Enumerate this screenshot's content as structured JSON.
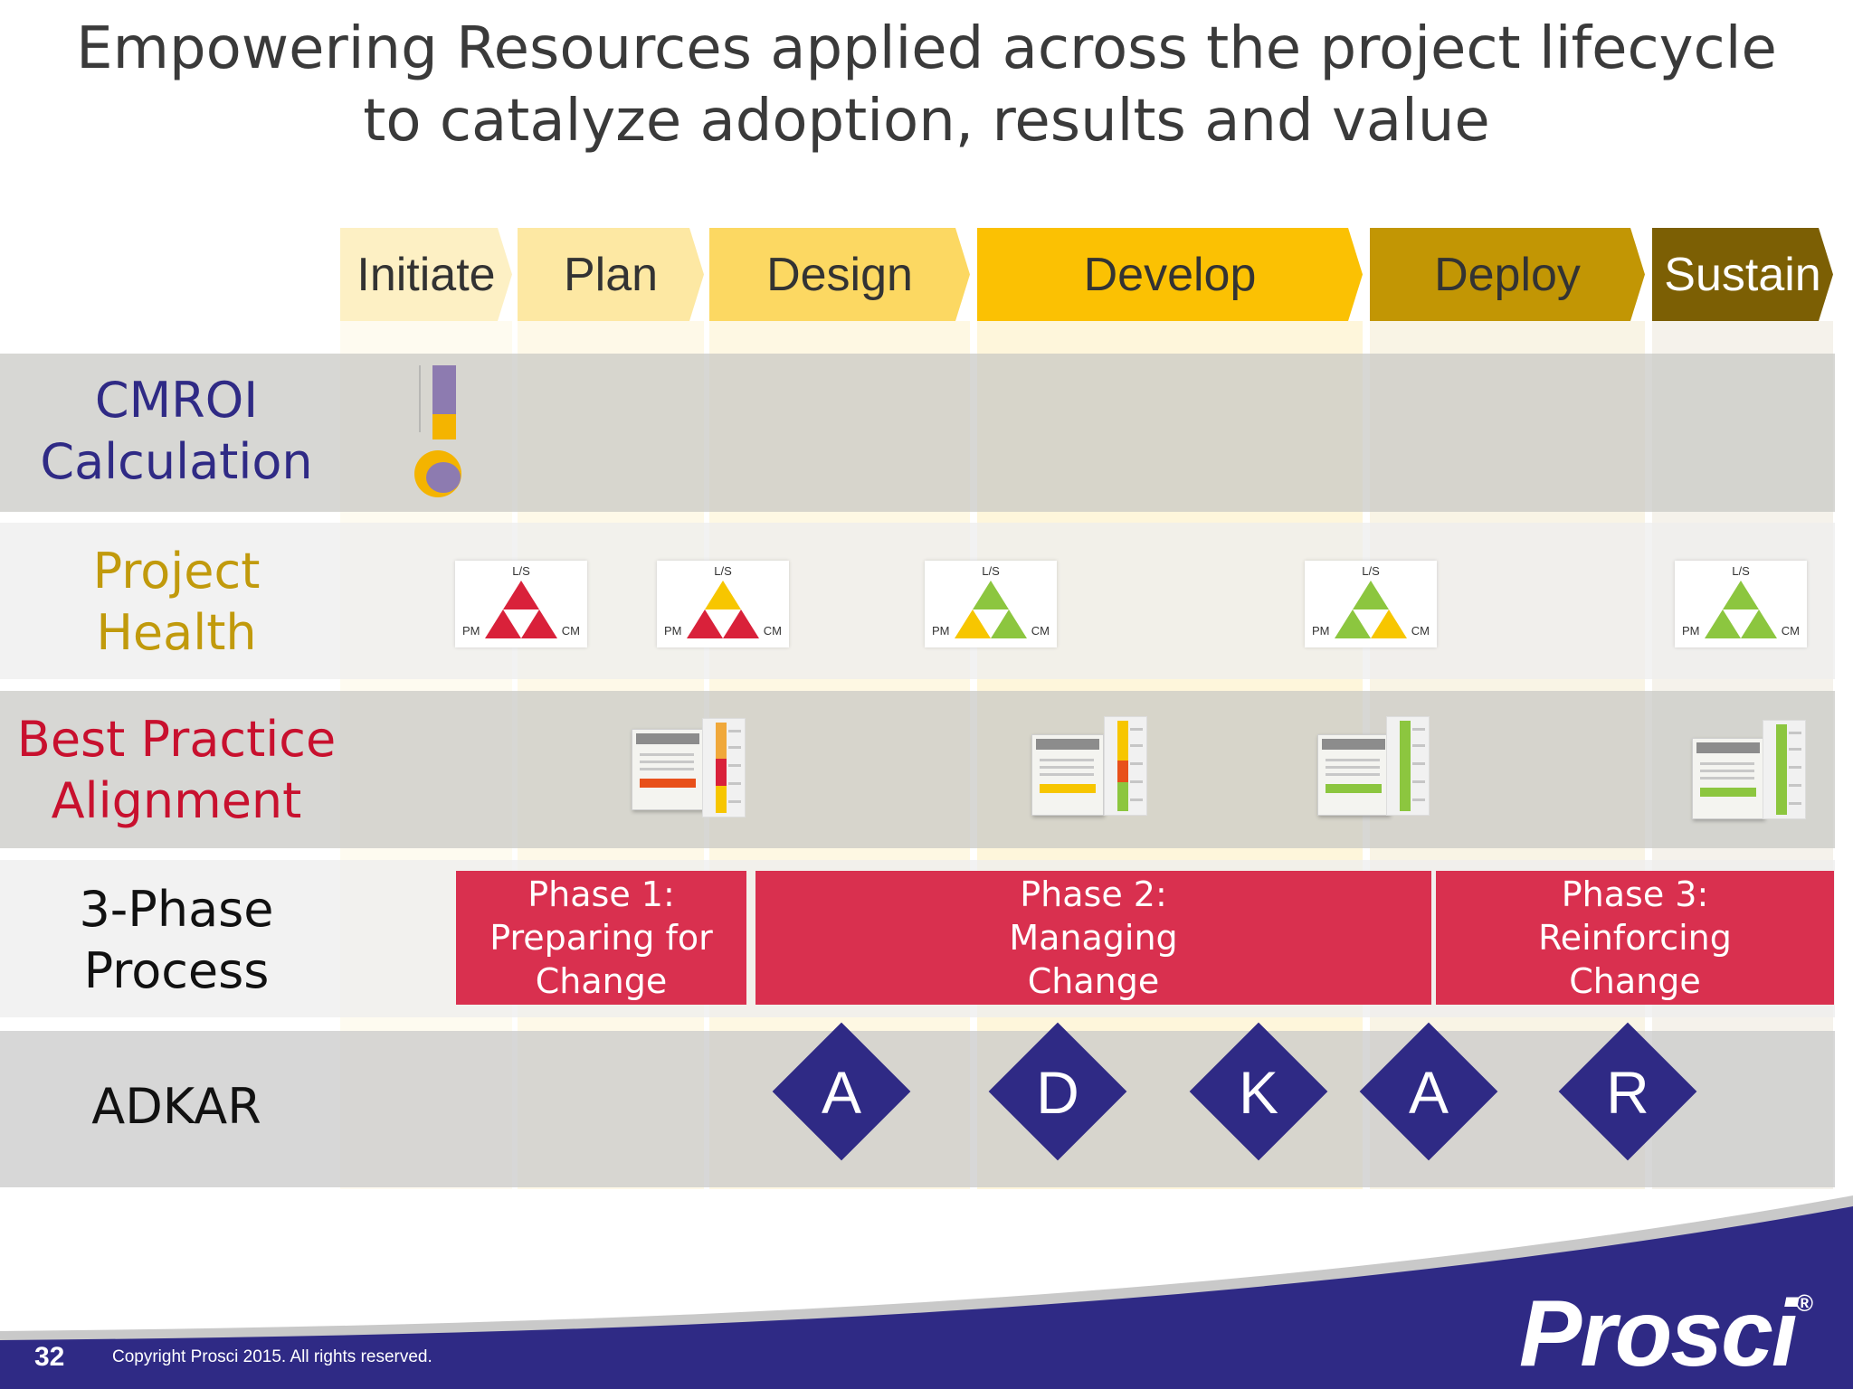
{
  "title": {
    "line1": "Empowering Resources applied across the project lifecycle",
    "line2": "to catalyze adoption, results and value"
  },
  "phases": [
    {
      "label": "Initiate",
      "color": "#fdf0c4",
      "text_color": "#333333"
    },
    {
      "label": "Plan",
      "color": "#fde8a3",
      "text_color": "#333333"
    },
    {
      "label": "Design",
      "color": "#fcd862",
      "text_color": "#333333"
    },
    {
      "label": "Develop",
      "color": "#fbc103",
      "text_color": "#333333"
    },
    {
      "label": "Deploy",
      "color": "#c29604",
      "text_color": "#333333"
    },
    {
      "label": "Sustain",
      "color": "#7c5f04",
      "text_color": "#ffffff"
    }
  ],
  "rows": {
    "cmroi": {
      "line1": "CMROI",
      "line2": "Calculation",
      "color": "#2f2a85"
    },
    "health": {
      "line1": "Project",
      "line2": "Health",
      "color": "#c19a0c"
    },
    "best_practice": {
      "line1": "Best Practice",
      "line2": "Alignment",
      "color": "#c8102e"
    },
    "three_phase": {
      "line1": "3-Phase",
      "line2": "Process",
      "color": "#111111"
    },
    "adkar": {
      "line1": "ADKAR",
      "color": "#111111"
    }
  },
  "triangles": {
    "ls": "L/S",
    "pm": "PM",
    "cm": "CM",
    "items": [
      {
        "top": "#d9213a",
        "left": "#d9213a",
        "right": "#d9213a"
      },
      {
        "top": "#f7c600",
        "left": "#d9213a",
        "right": "#d9213a"
      },
      {
        "top": "#8cc63f",
        "left": "#f7c600",
        "right": "#8cc63f"
      },
      {
        "top": "#8cc63f",
        "left": "#8cc63f",
        "right": "#f7c600"
      },
      {
        "top": "#8cc63f",
        "left": "#8cc63f",
        "right": "#8cc63f"
      }
    ]
  },
  "phase_process": [
    {
      "line1": "Phase 1:",
      "line2": "Preparing for",
      "line3": "Change"
    },
    {
      "line1": "Phase 2:",
      "line2": "Managing",
      "line3": "Change"
    },
    {
      "line1": "Phase 3:",
      "line2": "Reinforcing",
      "line3": "Change"
    }
  ],
  "adkar": [
    "A",
    "D",
    "K",
    "A",
    "R"
  ],
  "colors": {
    "phase_box": "#d9304f",
    "diamond": "#2f2a85",
    "footer": "#2f2a85"
  },
  "footer": {
    "page_number": "32",
    "copyright": "Copyright Prosci 2015. All rights reserved.",
    "logo": "Prosci",
    "registered": "®"
  }
}
